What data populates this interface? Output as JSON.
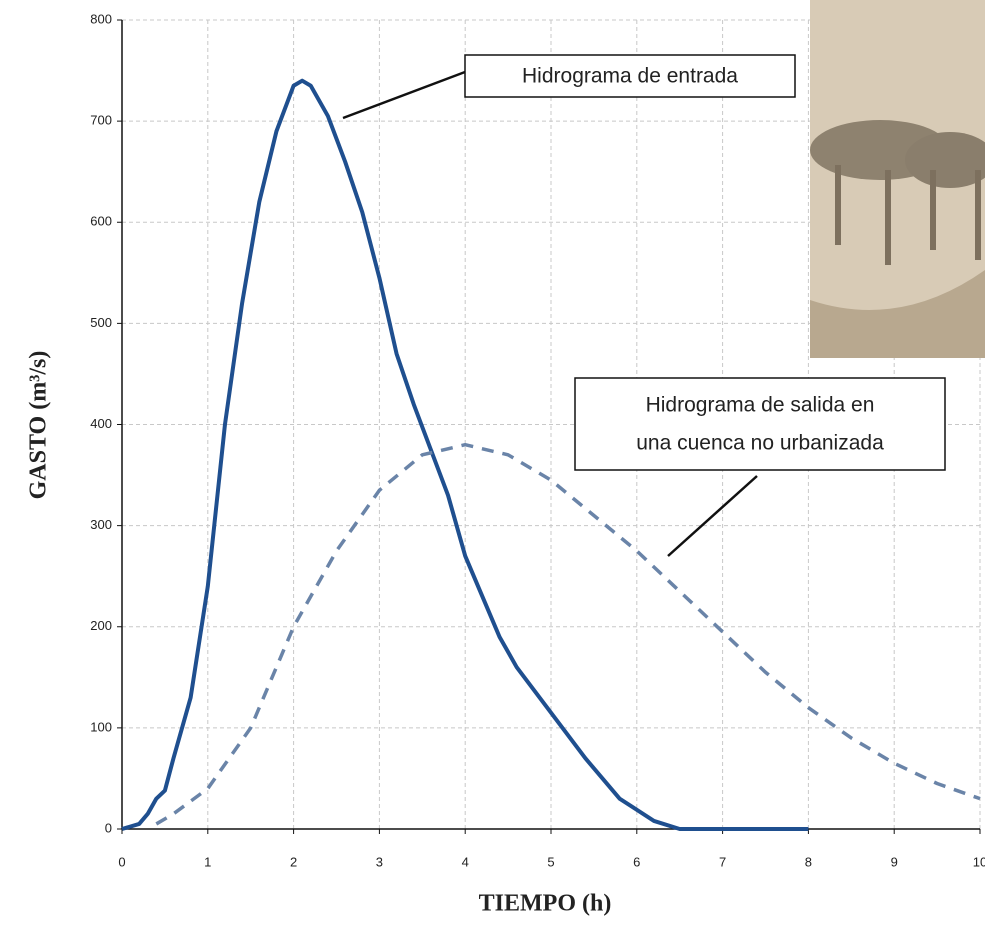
{
  "chart_data": {
    "type": "line",
    "xlabel": "TIEMPO (h)",
    "ylabel": "GASTO (m³/s)",
    "xlim": [
      0,
      10
    ],
    "ylim": [
      0,
      800
    ],
    "xticks": [
      0,
      1,
      2,
      3,
      4,
      5,
      6,
      7,
      8,
      9,
      10
    ],
    "yticks": [
      0,
      100,
      200,
      300,
      400,
      500,
      600,
      700,
      800
    ],
    "grid": true,
    "series": [
      {
        "name": "Hidrograma de entrada",
        "color": "#1f4f8f",
        "style": "solid",
        "x": [
          0,
          0.2,
          0.3,
          0.4,
          0.5,
          0.6,
          0.8,
          1.0,
          1.2,
          1.4,
          1.6,
          1.8,
          2.0,
          2.1,
          2.2,
          2.4,
          2.6,
          2.8,
          3.0,
          3.2,
          3.4,
          3.6,
          3.8,
          4.0,
          4.2,
          4.4,
          4.6,
          5.0,
          5.4,
          5.8,
          6.2,
          6.5,
          7,
          8
        ],
        "values": [
          0,
          5,
          15,
          30,
          38,
          70,
          130,
          240,
          400,
          520,
          620,
          690,
          735,
          740,
          735,
          705,
          660,
          610,
          545,
          470,
          420,
          375,
          330,
          270,
          230,
          190,
          160,
          115,
          70,
          30,
          8,
          0,
          0,
          0
        ]
      },
      {
        "name": "Hidrograma de salida en una cuenca no urbanizada",
        "lines": [
          "Hidrograma de salida en",
          "una cuenca no urbanizada"
        ],
        "color": "#6a84a8",
        "style": "dashed",
        "x": [
          0.4,
          0.6,
          1.0,
          1.5,
          2.0,
          2.5,
          3.0,
          3.5,
          4.0,
          4.5,
          5.0,
          5.5,
          6.0,
          6.5,
          7.0,
          7.5,
          8.0,
          8.5,
          9.0,
          9.5,
          10.0
        ],
        "values": [
          5,
          15,
          40,
          100,
          200,
          275,
          335,
          370,
          380,
          370,
          345,
          310,
          275,
          235,
          195,
          155,
          120,
          90,
          65,
          45,
          30
        ]
      }
    ]
  }
}
